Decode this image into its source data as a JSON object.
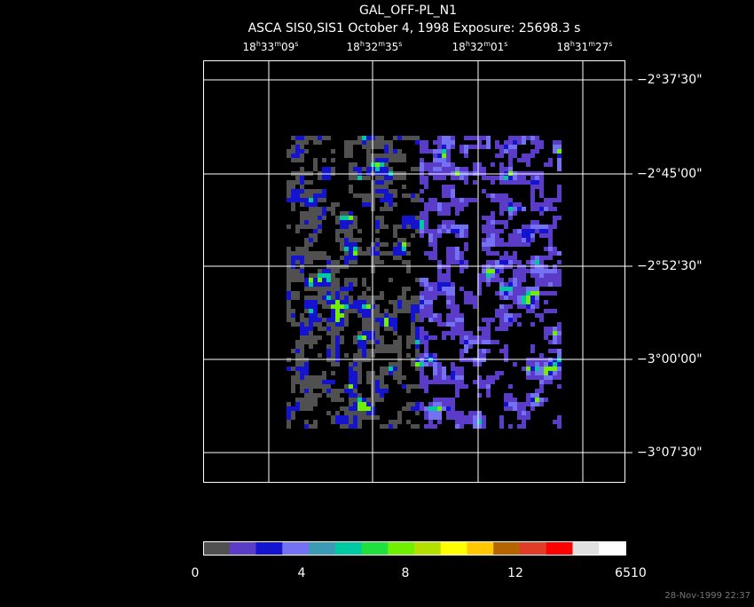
{
  "header": {
    "title": "GAL_OFF-PL_N1",
    "subtitle": "ASCA SIS0,SIS1 October 4, 1998 Exposure: 25698.3 s"
  },
  "ra_labels": [
    [
      "18",
      "h",
      "33",
      "m",
      "09",
      "s"
    ],
    [
      "18",
      "h",
      "32",
      "m",
      "35",
      "s"
    ],
    [
      "18",
      "h",
      "32",
      "m",
      "01",
      "s"
    ],
    [
      "18",
      "h",
      "31",
      "m",
      "27",
      "s"
    ]
  ],
  "dec_labels": [
    "−2°37'30\"",
    "−2°45'00\"",
    "−2°52'30\"",
    "−3°00'00\"",
    "−3°07'30\""
  ],
  "colorbar": {
    "colors": [
      "#505050",
      "#5a3cc8",
      "#1414d0",
      "#7272f2",
      "#3c9ab4",
      "#00c8a0",
      "#20e040",
      "#70f000",
      "#b4e000",
      "#ffff00",
      "#ffc800",
      "#b46400",
      "#e03c28",
      "#ff0000",
      "#e0e0e0",
      "#ffffff"
    ],
    "labels": [
      "0",
      "4",
      "8",
      "12",
      "6510"
    ]
  },
  "footer": "28-Nov-1999 22:37"
}
